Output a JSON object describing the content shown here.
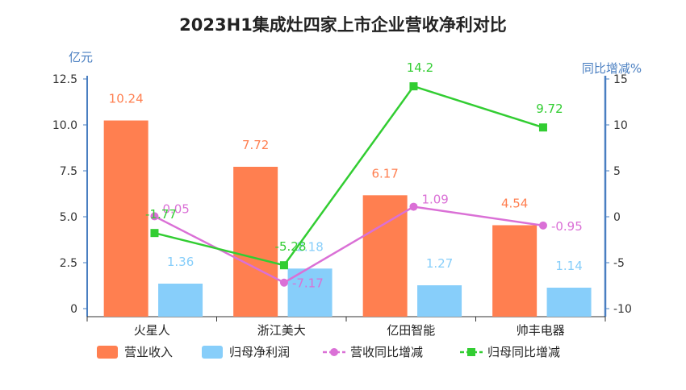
{
  "chart_data": {
    "type": "bar",
    "title": "2023H1集成灶四家上市企业营收净利对比",
    "ylabel_left": "亿元",
    "ylabel_right": "同比增减%",
    "categories": [
      "火星人",
      "浙江美大",
      "亿田智能",
      "帅丰电器"
    ],
    "ylim_left": [
      0,
      12.5
    ],
    "yticks_left": [
      "0",
      "2.5",
      "5.0",
      "7.5",
      "10.0",
      "12.5"
    ],
    "ylim_right": [
      -10,
      15
    ],
    "yticks_right": [
      "-10",
      "-5",
      "0",
      "5",
      "10",
      "15"
    ],
    "series": [
      {
        "name": "营业收入",
        "type": "bar",
        "axis": "left",
        "color": "#ff7f50",
        "values": [
          10.24,
          7.72,
          6.17,
          4.54
        ],
        "labels": [
          "10.24",
          "7.72",
          "6.17",
          "4.54"
        ]
      },
      {
        "name": "归母净利润",
        "type": "bar",
        "axis": "left",
        "color": "#87cefa",
        "values": [
          1.36,
          2.18,
          1.27,
          1.14
        ],
        "labels": [
          "1.36",
          "2.18",
          "1.27",
          "1.14"
        ]
      },
      {
        "name": "营收同比增减",
        "type": "line",
        "axis": "right",
        "color": "#da70d6",
        "marker": "circle",
        "values": [
          0.05,
          -7.17,
          1.09,
          -0.95
        ],
        "labels": [
          "0.05",
          "-7.17",
          "1.09",
          "-0.95"
        ]
      },
      {
        "name": "归母同比增减",
        "type": "line",
        "axis": "right",
        "color": "#32cd32",
        "marker": "square",
        "values": [
          -1.77,
          -5.28,
          14.2,
          9.72
        ],
        "labels": [
          "-1.77",
          "-5.28",
          "14.2",
          "9.72"
        ]
      }
    ],
    "grid": false,
    "legend_position": "bottom"
  }
}
